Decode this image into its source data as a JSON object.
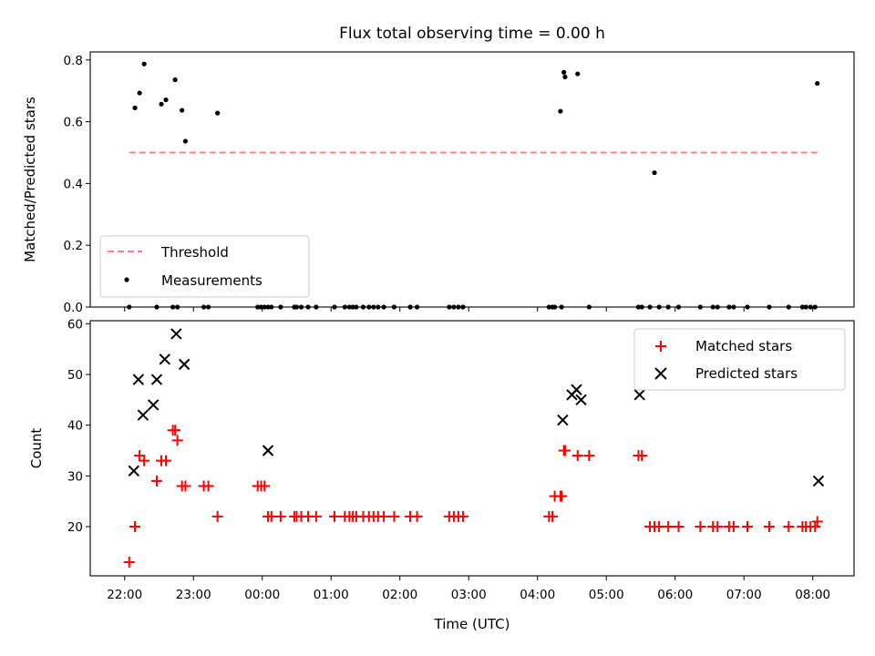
{
  "title": "Flux total observing time = 0.00 h",
  "chart_data": [
    {
      "type": "scatter",
      "xlabel": "",
      "ylabel": "Matched/Predicted stars",
      "xlim": [
        "21:30",
        "08:36"
      ],
      "ylim": [
        0,
        0.826
      ],
      "grid": false,
      "legend_position": "lower-left",
      "yticks": [
        "0.0",
        "0.2",
        "0.4",
        "0.6",
        "0.8"
      ],
      "series": [
        {
          "name": "Threshold",
          "kind": "dashed-line",
          "color": "#ff8080",
          "x": [
            "22:04",
            "08:06"
          ],
          "y": [
            0.5,
            0.5
          ]
        },
        {
          "name": "Measurements",
          "kind": "dot",
          "color": "#000000",
          "x": [
            "22:04",
            "22:09",
            "22:13",
            "22:17",
            "22:28",
            "22:32",
            "22:36",
            "22:42",
            "22:44",
            "22:46",
            "22:50",
            "22:53",
            "23:09",
            "23:13",
            "23:21",
            "23:56",
            "23:59",
            "00:02",
            "00:05",
            "00:08",
            "00:16",
            "00:28",
            "00:30",
            "00:34",
            "00:40",
            "00:47",
            "01:03",
            "01:12",
            "01:16",
            "01:19",
            "01:22",
            "01:28",
            "01:33",
            "01:37",
            "01:41",
            "01:46",
            "01:55",
            "02:09",
            "02:15",
            "02:43",
            "02:47",
            "02:51",
            "02:55",
            "04:10",
            "04:13",
            "04:15",
            "04:20",
            "04:21",
            "04:23",
            "04:24",
            "04:35",
            "04:45",
            "05:28",
            "05:31",
            "05:38",
            "05:42",
            "05:46",
            "05:54",
            "06:03",
            "06:22",
            "06:33",
            "06:37",
            "06:47",
            "06:51",
            "07:03",
            "07:22",
            "07:39",
            "07:51",
            "07:54",
            "07:58",
            "08:02",
            "08:04"
          ],
          "y": [
            0.0,
            0.645,
            0.693,
            0.787,
            0.0,
            0.657,
            0.671,
            0.0,
            0.736,
            0.0,
            0.637,
            0.537,
            0.0,
            0.0,
            0.628,
            0.0,
            0.0,
            0.0,
            0.0,
            0.0,
            0.0,
            0.0,
            0.0,
            0.0,
            0.0,
            0.0,
            0.0,
            0.0,
            0.0,
            0.0,
            0.0,
            0.0,
            0.0,
            0.0,
            0.0,
            0.0,
            0.0,
            0.0,
            0.0,
            0.0,
            0.0,
            0.0,
            0.0,
            0.0,
            0.0,
            0.0,
            0.634,
            0.0,
            0.76,
            0.745,
            0.755,
            0.0,
            0.0,
            0.0,
            0.0,
            0.435,
            0.0,
            0.0,
            0.0,
            0.0,
            0.0,
            0.0,
            0.0,
            0.0,
            0.0,
            0.0,
            0.0,
            0.0,
            0.0,
            0.0,
            0.0,
            0.724
          ]
        }
      ]
    },
    {
      "type": "scatter",
      "xlabel": "Time (UTC)",
      "ylabel": "Count",
      "xlim": [
        "21:30",
        "08:36"
      ],
      "ylim": [
        10.3,
        60.6
      ],
      "grid": false,
      "legend_position": "top-right",
      "yticks": [
        "20",
        "30",
        "40",
        "50",
        "60"
      ],
      "xticks": [
        "22:00",
        "23:00",
        "00:00",
        "01:00",
        "02:00",
        "03:00",
        "04:00",
        "05:00",
        "06:00",
        "07:00",
        "08:00"
      ],
      "series": [
        {
          "name": "Matched stars",
          "marker": "plus",
          "color": "#ff0000",
          "x": [
            "22:04",
            "22:09",
            "22:13",
            "22:17",
            "22:28",
            "22:32",
            "22:36",
            "22:42",
            "22:44",
            "22:46",
            "22:50",
            "22:53",
            "23:09",
            "23:13",
            "23:21",
            "23:56",
            "23:59",
            "00:02",
            "00:05",
            "00:08",
            "00:16",
            "00:28",
            "00:30",
            "00:34",
            "00:40",
            "00:47",
            "01:03",
            "01:12",
            "01:16",
            "01:19",
            "01:22",
            "01:28",
            "01:33",
            "01:37",
            "01:41",
            "01:46",
            "01:55",
            "02:09",
            "02:15",
            "02:43",
            "02:47",
            "02:51",
            "02:55",
            "04:10",
            "04:13",
            "04:15",
            "04:20",
            "04:21",
            "04:23",
            "04:24",
            "04:35",
            "04:45",
            "05:28",
            "05:31",
            "05:38",
            "05:42",
            "05:46",
            "05:54",
            "06:03",
            "06:22",
            "06:33",
            "06:37",
            "06:47",
            "06:51",
            "07:03",
            "07:22",
            "07:39",
            "07:51",
            "07:54",
            "07:58",
            "08:02",
            "08:04"
          ],
          "y": [
            13,
            20,
            34,
            33,
            29,
            33,
            33,
            39,
            39,
            37,
            28,
            28,
            28,
            28,
            22,
            28,
            28,
            28,
            22,
            22,
            22,
            22,
            22,
            22,
            22,
            22,
            22,
            22,
            22,
            22,
            22,
            22,
            22,
            22,
            22,
            22,
            22,
            22,
            22,
            22,
            22,
            22,
            22,
            22,
            22,
            26,
            26,
            26,
            35,
            35,
            34,
            34,
            34,
            34,
            20,
            20,
            20,
            20,
            20,
            20,
            20,
            20,
            20,
            20,
            20,
            20,
            20,
            20,
            20,
            20,
            20,
            21
          ]
        },
        {
          "name": "Predicted stars",
          "marker": "x",
          "color": "#000000",
          "x": [
            "22:08",
            "22:12",
            "22:16",
            "22:25",
            "22:28",
            "22:35",
            "22:45",
            "22:52",
            "00:05",
            "04:22",
            "04:30",
            "04:34",
            "04:38",
            "05:29",
            "08:05"
          ],
          "y": [
            31,
            49,
            42,
            44,
            49,
            53,
            58,
            52,
            35,
            41,
            46,
            47,
            45,
            46,
            29
          ]
        }
      ]
    }
  ]
}
